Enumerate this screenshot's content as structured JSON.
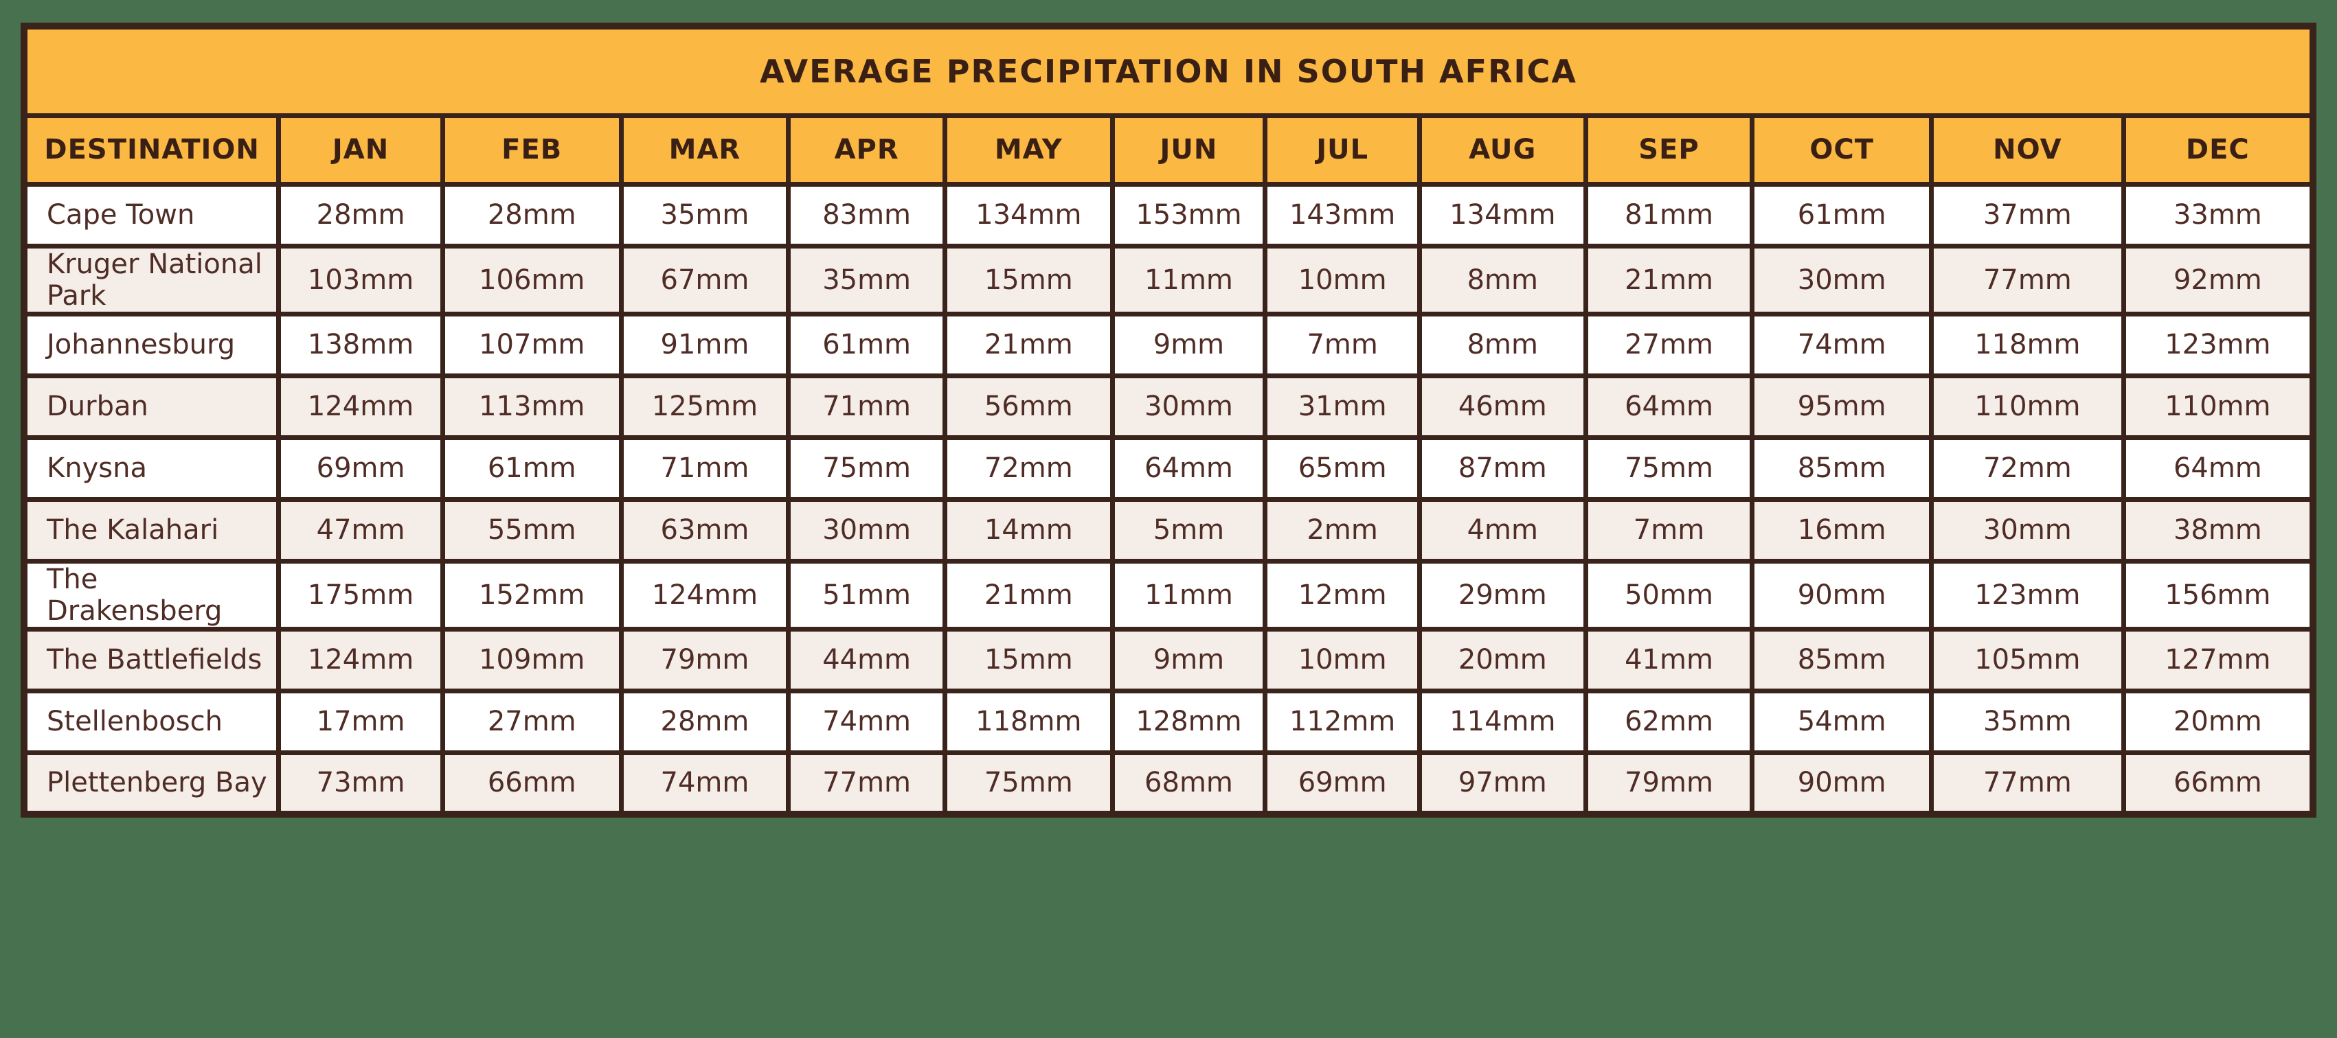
{
  "title": "AVERAGE PRECIPITATION IN SOUTH AFRICA",
  "colors": {
    "page_background": "#47714F",
    "header_background": "#FBB843",
    "border": "#3A231B",
    "row_white": "#FFFFFF",
    "row_beige": "#F5EDE8",
    "header_text": "#3A2014",
    "cell_text": "#4F2D26"
  },
  "chart_data": {
    "type": "table",
    "title": "AVERAGE PRECIPITATION IN SOUTH AFRICA",
    "unit": "mm",
    "columns": [
      "DESTINATION",
      "JAN",
      "FEB",
      "MAR",
      "APR",
      "MAY",
      "JUN",
      "JUL",
      "AUG",
      "SEP",
      "OCT",
      "NOV",
      "DEC"
    ],
    "rows": [
      {
        "destination": "Cape Town",
        "values": [
          28,
          28,
          35,
          83,
          134,
          153,
          143,
          134,
          81,
          61,
          37,
          33
        ]
      },
      {
        "destination": "Kruger National Park",
        "values": [
          103,
          106,
          67,
          35,
          15,
          11,
          10,
          8,
          21,
          30,
          77,
          92
        ]
      },
      {
        "destination": "Johannesburg",
        "values": [
          138,
          107,
          91,
          61,
          21,
          9,
          7,
          8,
          27,
          74,
          118,
          123
        ]
      },
      {
        "destination": "Durban",
        "values": [
          124,
          113,
          125,
          71,
          56,
          30,
          31,
          46,
          64,
          95,
          110,
          110
        ]
      },
      {
        "destination": "Knysna",
        "values": [
          69,
          61,
          71,
          75,
          72,
          64,
          65,
          87,
          75,
          85,
          72,
          64
        ]
      },
      {
        "destination": "The Kalahari",
        "values": [
          47,
          55,
          63,
          30,
          14,
          5,
          2,
          4,
          7,
          16,
          30,
          38
        ]
      },
      {
        "destination": "The Drakensberg",
        "values": [
          175,
          152,
          124,
          51,
          21,
          11,
          12,
          29,
          50,
          90,
          123,
          156
        ]
      },
      {
        "destination": "The Battlefields",
        "values": [
          124,
          109,
          79,
          44,
          15,
          9,
          10,
          20,
          41,
          85,
          105,
          127
        ]
      },
      {
        "destination": "Stellenbosch",
        "values": [
          17,
          27,
          28,
          74,
          118,
          128,
          112,
          114,
          62,
          54,
          35,
          20
        ]
      },
      {
        "destination": "Plettenberg Bay",
        "values": [
          73,
          66,
          74,
          77,
          75,
          68,
          69,
          97,
          79,
          90,
          77,
          66
        ]
      }
    ]
  }
}
